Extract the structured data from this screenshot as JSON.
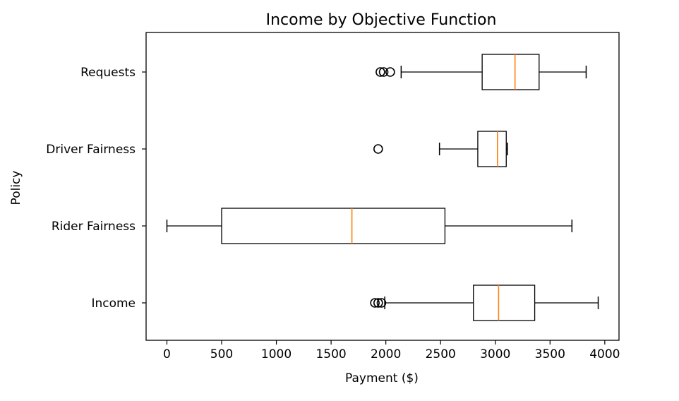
{
  "chart_data": {
    "type": "boxplot",
    "orientation": "horizontal",
    "title": "Income by Objective Function",
    "xlabel": "Payment ($)",
    "ylabel": "Policy",
    "xlim": [
      -190,
      4130
    ],
    "xticks": [
      "0",
      "500",
      "1000",
      "1500",
      "2000",
      "2500",
      "3000",
      "3500",
      "4000"
    ],
    "grid": false,
    "colors": {
      "box": "#000000",
      "median": "#ff7f0e"
    },
    "categories": [
      "Income",
      "Rider Fairness",
      "Driver Fairness",
      "Requests"
    ],
    "boxes": [
      {
        "label": "Income",
        "whislo": 1990,
        "q1": 2800,
        "med": 3030,
        "q3": 3360,
        "whishi": 3940,
        "fliers": [
          1900,
          1930,
          1960
        ]
      },
      {
        "label": "Rider Fairness",
        "whislo": 0,
        "q1": 500,
        "med": 1690,
        "q3": 2540,
        "whishi": 3700,
        "fliers": []
      },
      {
        "label": "Driver Fairness",
        "whislo": 2490,
        "q1": 2840,
        "med": 3020,
        "q3": 3100,
        "whishi": 3110,
        "fliers": [
          1930
        ]
      },
      {
        "label": "Requests",
        "whislo": 2140,
        "q1": 2880,
        "med": 3180,
        "q3": 3400,
        "whishi": 3830,
        "fliers": [
          1950,
          1980,
          2040
        ]
      }
    ]
  }
}
